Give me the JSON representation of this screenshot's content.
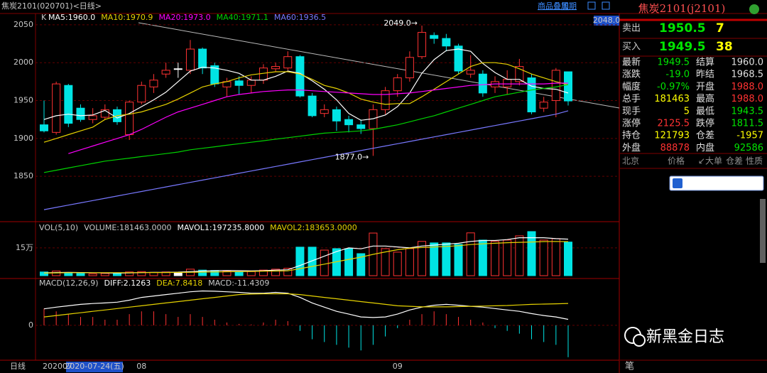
{
  "header": {
    "title": "焦炭2101(020701)<日线>",
    "links": [
      "商品叠加",
      "周期"
    ]
  },
  "chart_data": {
    "type": "candlestick",
    "indicator_label": "K",
    "categories": [
      "202007",
      null,
      null,
      null,
      null,
      null,
      null,
      null,
      "08",
      null,
      null,
      null,
      null,
      null,
      null,
      null,
      null,
      null,
      null,
      null,
      null,
      null,
      null,
      null,
      null,
      null,
      null,
      null,
      null,
      "09",
      null,
      null,
      null,
      null,
      null,
      null,
      null,
      null,
      null,
      null,
      null,
      null,
      null,
      null
    ],
    "open": [
      1918,
      1908,
      1970,
      1940,
      1925,
      1928,
      1938,
      1905,
      1948,
      1968,
      1985,
      1992,
      1990,
      2018,
      1996,
      1968,
      1976,
      1970,
      1977,
      1992,
      1993,
      2008,
      1956,
      1933,
      1938,
      1925,
      1918,
      1913,
      1938,
      1963,
      1980,
      2008,
      2036,
      2032,
      2022,
      1985,
      1985,
      1968,
      1968,
      1975,
      1980,
      1940,
      1950,
      1988
    ],
    "high": [
      1950,
      1975,
      1972,
      1945,
      1940,
      1945,
      1942,
      1950,
      1975,
      1985,
      2000,
      2000,
      2030,
      2020,
      2000,
      1980,
      1982,
      1982,
      1998,
      2000,
      2015,
      2010,
      1960,
      1945,
      1942,
      1930,
      1925,
      1945,
      1968,
      1985,
      2015,
      2049,
      2040,
      2038,
      2025,
      2010,
      1990,
      1982,
      1990,
      2005,
      1985,
      1955,
      1993,
      1988
    ],
    "low": [
      1908,
      1905,
      1915,
      1922,
      1920,
      1925,
      1918,
      1898,
      1945,
      1960,
      1980,
      1980,
      1985,
      1985,
      1968,
      1955,
      1958,
      1960,
      1972,
      1988,
      1990,
      1954,
      1928,
      1928,
      1910,
      1908,
      1906,
      1877,
      1932,
      1955,
      1975,
      2005,
      2025,
      2015,
      1985,
      1980,
      1955,
      1960,
      1958,
      1970,
      1932,
      1935,
      1928,
      1943.5
    ],
    "close": [
      1910,
      1972,
      1920,
      1925,
      1930,
      1938,
      1922,
      1948,
      1970,
      1977,
      1990,
      1992,
      2018,
      1993,
      1972,
      1975,
      1970,
      1977,
      1993,
      1995,
      2008,
      1956,
      1930,
      1938,
      1923,
      1918,
      1913,
      1938,
      1963,
      1980,
      2007,
      2040,
      2032,
      2022,
      1989,
      1990,
      1960,
      1975,
      1978,
      1995,
      1935,
      1948,
      1990,
      1949.5
    ],
    "colors": {
      "up": "#ff3232",
      "down": "#00e4e4",
      "flat": "#ffffff"
    },
    "ylim": [
      1792,
      2064
    ],
    "yticks": [
      1850,
      1900,
      1950,
      2000,
      2050
    ],
    "high_label": "2049.0→",
    "low_label": "1877.0→",
    "cursor_price_label": "2048.0",
    "series": [
      {
        "name": "MA5:1960.0",
        "color": "#ffffff",
        "values": [
          1925,
          1930,
          1932,
          1930,
          1931,
          1937,
          1927,
          1933,
          1942,
          1951,
          1961,
          1975,
          1989,
          1994,
          1993,
          1990,
          1986,
          1977,
          1977,
          1982,
          1989,
          1986,
          1976,
          1965,
          1951,
          1933,
          1924,
          1926,
          1931,
          1942,
          1960,
          1986,
          2004,
          2016,
          2018,
          2015,
          1999,
          1987,
          1978,
          1978,
          1969,
          1966,
          1965,
          1960
        ]
      },
      {
        "name": "MA10:1970.9",
        "color": "#e6d200",
        "values": [
          1895,
          1900,
          1905,
          1910,
          1915,
          1925,
          1930,
          1932,
          1935,
          1940,
          1945,
          1952,
          1960,
          1968,
          1972,
          1975,
          1980,
          1984,
          1986,
          1988,
          1988,
          1985,
          1978,
          1970,
          1966,
          1960,
          1952,
          1948,
          1945,
          1946,
          1946,
          1955,
          1965,
          1975,
          1985,
          1995,
          2000,
          2000,
          1998,
          1992,
          1985,
          1980,
          1975,
          1970.9
        ]
      },
      {
        "name": "MA20:1973.0",
        "color": "#ff00ff",
        "values": [
          null,
          null,
          1880,
          1885,
          1890,
          1895,
          1900,
          1905,
          1912,
          1920,
          1928,
          1935,
          1940,
          1945,
          1950,
          1955,
          1958,
          1960,
          1962,
          1963,
          1964,
          1964,
          1963,
          1962,
          1961,
          1960,
          1959,
          1958,
          1958,
          1959,
          1960,
          1962,
          1964,
          1966,
          1968,
          1970,
          1971,
          1972,
          1972,
          1972,
          1972,
          1972,
          1973,
          1973.0
        ]
      },
      {
        "name": "MA40:1971.1",
        "color": "#00d200",
        "values": [
          1855,
          1858,
          1861,
          1864,
          1867,
          1870,
          1872,
          1874,
          1876,
          1878,
          1880,
          1882,
          1885,
          1887,
          1889,
          1891,
          1893,
          1895,
          1897,
          1899,
          1901,
          1903,
          1905,
          1907,
          1908,
          1909,
          1910,
          1912,
          1915,
          1918,
          1922,
          1926,
          1930,
          1935,
          1940,
          1945,
          1950,
          1955,
          1958,
          1961,
          1964,
          1966,
          1968,
          1971.1
        ]
      },
      {
        "name": "MA60:1936.5",
        "color": "#7878ff",
        "values": [
          1806,
          1809,
          1812,
          1815,
          1818,
          1821,
          1824,
          1827,
          1830,
          1833,
          1836,
          1839,
          1842,
          1845,
          1848,
          1851,
          1854,
          1857,
          1860,
          1863,
          1866,
          1869,
          1872,
          1875,
          1878,
          1881,
          1884,
          1887,
          1890,
          1893,
          1896,
          1899,
          1902,
          1905,
          1908,
          1911,
          1914,
          1917,
          1920,
          1923,
          1926,
          1929,
          1932,
          1936.5
        ]
      }
    ],
    "volume": {
      "title": "VOL(5,10)",
      "volume_label": "VOLUME:181463.0000",
      "values": [
        20000,
        25000,
        15000,
        12000,
        10000,
        12000,
        15000,
        20000,
        22000,
        18000,
        20000,
        15000,
        35000,
        30000,
        28000,
        25000,
        20000,
        22000,
        30000,
        35000,
        40000,
        154000,
        154000,
        138000,
        146000,
        146000,
        119000,
        230000,
        146000,
        127000,
        146000,
        185000,
        177000,
        177000,
        169000,
        231000,
        192000,
        185000,
        192000,
        215000,
        238000,
        192000,
        200000,
        181463
      ],
      "ylim": [
        0,
        280000
      ],
      "yticks": [
        {
          "value": 150000,
          "label": "15万"
        }
      ],
      "series": [
        {
          "name": "MAVOL1:197235.8000",
          "color": "#ffffff",
          "values": [
            15000,
            17000,
            18000,
            17000,
            16000,
            15000,
            14000,
            15000,
            17000,
            18000,
            18000,
            19000,
            22000,
            25000,
            27000,
            28000,
            27000,
            26000,
            27000,
            30000,
            32000,
            55000,
            80000,
            105000,
            130000,
            150000,
            145000,
            160000,
            160000,
            155000,
            150000,
            160000,
            165000,
            170000,
            175000,
            185000,
            190000,
            190000,
            195000,
            205000,
            205000,
            205000,
            200000,
            197235.8
          ]
        },
        {
          "name": "MAVOL2:183653.0000",
          "color": "#e6d200",
          "values": [
            14000,
            15000,
            16000,
            16000,
            16000,
            16000,
            16000,
            16000,
            16500,
            17000,
            17000,
            17500,
            18000,
            19000,
            20000,
            21000,
            22000,
            23000,
            24000,
            25000,
            26000,
            38000,
            50000,
            62000,
            75000,
            88000,
            100000,
            115000,
            128000,
            140000,
            148000,
            152000,
            155000,
            158000,
            162000,
            168000,
            172000,
            175000,
            178000,
            180000,
            182000,
            184000,
            185000,
            183653
          ]
        }
      ]
    },
    "macd": {
      "title": "MACD(12,26,9)",
      "bars_label": "MACD:-11.4309",
      "values": [
        6,
        5,
        4,
        3,
        3,
        2,
        2,
        4,
        5,
        5,
        4,
        3,
        4,
        3,
        2,
        1,
        0.5,
        0.3,
        1,
        2,
        1.5,
        -2,
        -5,
        -6,
        -7,
        -8,
        -9,
        -7,
        -4,
        -1,
        2,
        4,
        5,
        4,
        3,
        2,
        1,
        -1,
        -2,
        -3,
        -5,
        -6,
        -7,
        -11.4309
      ],
      "ylim": [
        -12,
        16
      ],
      "yticks": [
        0
      ],
      "series": [
        {
          "name": "DIFF:2.1263",
          "color": "#ffffff",
          "values": [
            5.9,
            6.5,
            7,
            7.5,
            7.8,
            8,
            8.3,
            9,
            10,
            10.5,
            11,
            11.5,
            12,
            12.3,
            12.2,
            12,
            11.8,
            11.5,
            11.5,
            11.8,
            11.5,
            10,
            8,
            6.5,
            5,
            4,
            3,
            2.8,
            3,
            4,
            5.5,
            6.5,
            7.2,
            7.5,
            7.2,
            6.8,
            6.5,
            6,
            5.5,
            5,
            4.2,
            3.5,
            3,
            2.1263
          ]
        },
        {
          "name": "DEA:7.8418",
          "color": "#e6d200",
          "values": [
            3,
            3.5,
            4,
            4.5,
            5,
            5.5,
            6,
            6.5,
            7,
            7.5,
            8,
            8.5,
            9,
            9.5,
            10,
            10.5,
            11,
            11.2,
            11.3,
            11.3,
            11.3,
            11,
            10.5,
            10,
            9.5,
            9,
            8.5,
            8,
            7.5,
            7,
            6.8,
            6.6,
            6.6,
            6.6,
            6.7,
            6.8,
            6.9,
            7,
            7.1,
            7.3,
            7.5,
            7.6,
            7.7,
            7.8418
          ]
        }
      ]
    }
  },
  "footer": {
    "period": "日线",
    "date": "2020-07-24(五)"
  },
  "quote": {
    "title": "焦炭2101(j2101)",
    "ask": {
      "label": "卖出",
      "price": "1950.5",
      "qty": "7"
    },
    "bid": {
      "label": "买入",
      "price": "1949.5",
      "qty": "38"
    },
    "rows": [
      [
        "最新",
        "1949.5",
        "结算",
        "1960.0"
      ],
      [
        "涨跌",
        "-19.0",
        "昨结",
        "1968.5"
      ],
      [
        "幅度",
        "-0.97%",
        "开盘",
        "1988.0"
      ],
      [
        "总手",
        "181463",
        "最高",
        "1988.0"
      ],
      [
        "现手",
        "5",
        "最低",
        "1943.5"
      ],
      [
        "涨停",
        "2125.5",
        "跌停",
        "1811.5"
      ],
      [
        "持仓",
        "121793",
        "仓差",
        "-1957"
      ],
      [
        "外盘",
        "88878",
        "内盘",
        "92586"
      ]
    ],
    "tick_header": [
      "北京",
      "价格",
      "↙大单",
      "仓差",
      "性质"
    ],
    "tab": "笔"
  },
  "watermark": "新黑金日志"
}
